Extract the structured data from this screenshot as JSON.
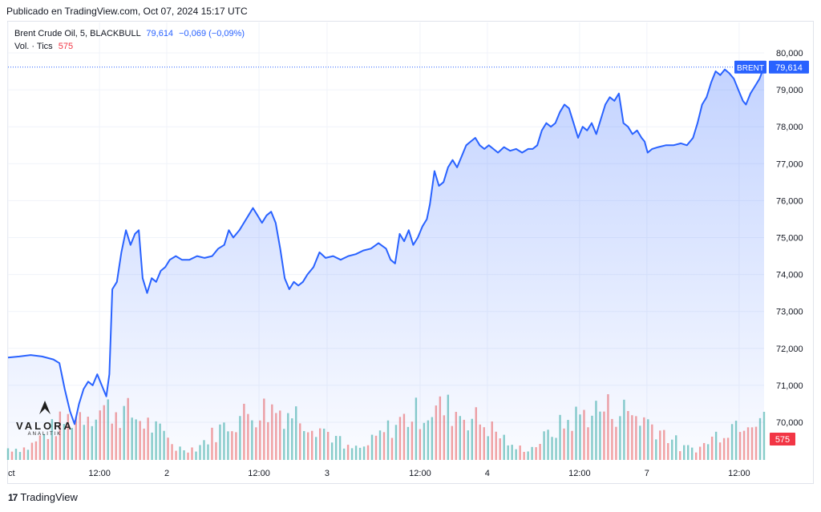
{
  "header": {
    "published": "Publicado en TradingView.com, Oct 07, 2024 15:17 UTC"
  },
  "legend": {
    "symbol_line": "Brent Crude Oil, 5, BLACKBULL",
    "last": "79,614",
    "change": "−0,069 (−0,09%)",
    "vol_label": "Vol. · Tics",
    "vol_value": "575"
  },
  "price_tag": {
    "symbol": "BRENT",
    "value": "79,614"
  },
  "volume_tag": "575",
  "watermark": {
    "name": "VALORA",
    "sub": "ANALITIK"
  },
  "footer": {
    "brand": "TradingView",
    "logo": "17"
  },
  "colors": {
    "line": "#2962ff",
    "vol_up": "#26a69a",
    "vol_down": "#ef5350",
    "tag": "#2962ff",
    "vol_tag": "#f23645"
  },
  "chart_data": {
    "type": "area",
    "ylim": [
      69.0,
      80.0
    ],
    "y_ticks": [
      "80,000",
      "79,000",
      "78,000",
      "77,000",
      "76,000",
      "75,000",
      "74,000",
      "73,000",
      "72,000",
      "71,000",
      "70,000"
    ],
    "x_ticks": [
      {
        "label": "ct",
        "t": 0
      },
      {
        "label": "12:00",
        "t": 0.121
      },
      {
        "label": "2",
        "t": 0.21
      },
      {
        "label": "12:00",
        "t": 0.332
      },
      {
        "label": "3",
        "t": 0.422
      },
      {
        "label": "12:00",
        "t": 0.545
      },
      {
        "label": "4",
        "t": 0.634
      },
      {
        "label": "12:00",
        "t": 0.756
      },
      {
        "label": "7",
        "t": 0.845
      },
      {
        "label": "12:00",
        "t": 0.967
      }
    ],
    "last_price": 79.614,
    "series": [
      {
        "points": [
          [
            0.0,
            71.75
          ],
          [
            0.015,
            71.78
          ],
          [
            0.03,
            71.82
          ],
          [
            0.045,
            71.78
          ],
          [
            0.06,
            71.7
          ],
          [
            0.068,
            71.6
          ],
          [
            0.075,
            70.9
          ],
          [
            0.082,
            70.3
          ],
          [
            0.088,
            69.95
          ],
          [
            0.094,
            70.5
          ],
          [
            0.1,
            70.9
          ],
          [
            0.106,
            71.1
          ],
          [
            0.112,
            71.0
          ],
          [
            0.118,
            71.3
          ],
          [
            0.124,
            71.0
          ],
          [
            0.13,
            70.7
          ],
          [
            0.134,
            71.3
          ],
          [
            0.138,
            73.6
          ],
          [
            0.144,
            73.8
          ],
          [
            0.15,
            74.6
          ],
          [
            0.156,
            75.2
          ],
          [
            0.162,
            74.8
          ],
          [
            0.168,
            75.1
          ],
          [
            0.173,
            75.2
          ],
          [
            0.178,
            73.9
          ],
          [
            0.184,
            73.5
          ],
          [
            0.19,
            73.9
          ],
          [
            0.196,
            73.8
          ],
          [
            0.202,
            74.1
          ],
          [
            0.208,
            74.2
          ],
          [
            0.214,
            74.4
          ],
          [
            0.222,
            74.5
          ],
          [
            0.23,
            74.4
          ],
          [
            0.24,
            74.4
          ],
          [
            0.25,
            74.5
          ],
          [
            0.26,
            74.45
          ],
          [
            0.27,
            74.5
          ],
          [
            0.278,
            74.7
          ],
          [
            0.286,
            74.8
          ],
          [
            0.292,
            75.2
          ],
          [
            0.298,
            75.0
          ],
          [
            0.306,
            75.2
          ],
          [
            0.312,
            75.4
          ],
          [
            0.318,
            75.6
          ],
          [
            0.324,
            75.8
          ],
          [
            0.33,
            75.6
          ],
          [
            0.336,
            75.4
          ],
          [
            0.342,
            75.6
          ],
          [
            0.348,
            75.7
          ],
          [
            0.354,
            75.4
          ],
          [
            0.36,
            74.7
          ],
          [
            0.366,
            73.9
          ],
          [
            0.372,
            73.6
          ],
          [
            0.378,
            73.8
          ],
          [
            0.384,
            73.7
          ],
          [
            0.39,
            73.8
          ],
          [
            0.396,
            74.0
          ],
          [
            0.404,
            74.2
          ],
          [
            0.412,
            74.6
          ],
          [
            0.42,
            74.45
          ],
          [
            0.43,
            74.5
          ],
          [
            0.44,
            74.4
          ],
          [
            0.45,
            74.5
          ],
          [
            0.46,
            74.55
          ],
          [
            0.47,
            74.65
          ],
          [
            0.48,
            74.7
          ],
          [
            0.49,
            74.85
          ],
          [
            0.5,
            74.7
          ],
          [
            0.506,
            74.4
          ],
          [
            0.512,
            74.3
          ],
          [
            0.518,
            75.1
          ],
          [
            0.524,
            74.9
          ],
          [
            0.53,
            75.2
          ],
          [
            0.536,
            74.8
          ],
          [
            0.542,
            75.0
          ],
          [
            0.548,
            75.3
          ],
          [
            0.554,
            75.5
          ],
          [
            0.558,
            75.9
          ],
          [
            0.564,
            76.8
          ],
          [
            0.57,
            76.4
          ],
          [
            0.576,
            76.5
          ],
          [
            0.582,
            76.9
          ],
          [
            0.588,
            77.1
          ],
          [
            0.594,
            76.9
          ],
          [
            0.6,
            77.2
          ],
          [
            0.606,
            77.5
          ],
          [
            0.612,
            77.6
          ],
          [
            0.618,
            77.7
          ],
          [
            0.624,
            77.5
          ],
          [
            0.63,
            77.4
          ],
          [
            0.636,
            77.5
          ],
          [
            0.642,
            77.4
          ],
          [
            0.648,
            77.3
          ],
          [
            0.656,
            77.45
          ],
          [
            0.664,
            77.35
          ],
          [
            0.672,
            77.4
          ],
          [
            0.68,
            77.3
          ],
          [
            0.688,
            77.4
          ],
          [
            0.694,
            77.4
          ],
          [
            0.7,
            77.5
          ],
          [
            0.706,
            77.9
          ],
          [
            0.712,
            78.1
          ],
          [
            0.718,
            78.0
          ],
          [
            0.724,
            78.1
          ],
          [
            0.73,
            78.4
          ],
          [
            0.736,
            78.6
          ],
          [
            0.742,
            78.5
          ],
          [
            0.748,
            78.1
          ],
          [
            0.754,
            77.7
          ],
          [
            0.76,
            78.0
          ],
          [
            0.766,
            77.9
          ],
          [
            0.772,
            78.1
          ],
          [
            0.778,
            77.8
          ],
          [
            0.784,
            78.2
          ],
          [
            0.79,
            78.6
          ],
          [
            0.796,
            78.8
          ],
          [
            0.802,
            78.7
          ],
          [
            0.808,
            78.9
          ],
          [
            0.814,
            78.1
          ],
          [
            0.82,
            78.0
          ],
          [
            0.826,
            77.8
          ],
          [
            0.832,
            77.9
          ],
          [
            0.838,
            77.7
          ],
          [
            0.842,
            77.6
          ],
          [
            0.846,
            77.3
          ],
          [
            0.852,
            77.4
          ],
          [
            0.86,
            77.45
          ],
          [
            0.87,
            77.5
          ],
          [
            0.88,
            77.5
          ],
          [
            0.89,
            77.55
          ],
          [
            0.898,
            77.5
          ],
          [
            0.906,
            77.7
          ],
          [
            0.912,
            78.1
          ],
          [
            0.918,
            78.6
          ],
          [
            0.924,
            78.8
          ],
          [
            0.93,
            79.2
          ],
          [
            0.936,
            79.5
          ],
          [
            0.942,
            79.4
          ],
          [
            0.948,
            79.55
          ],
          [
            0.954,
            79.45
          ],
          [
            0.96,
            79.3
          ],
          [
            0.966,
            79.0
          ],
          [
            0.972,
            78.7
          ],
          [
            0.976,
            78.6
          ],
          [
            0.982,
            78.9
          ],
          [
            0.988,
            79.1
          ],
          [
            0.994,
            79.3
          ],
          [
            1.0,
            79.614
          ]
        ]
      }
    ],
    "volume_max": 1400,
    "volume_tick_value": 575
  }
}
